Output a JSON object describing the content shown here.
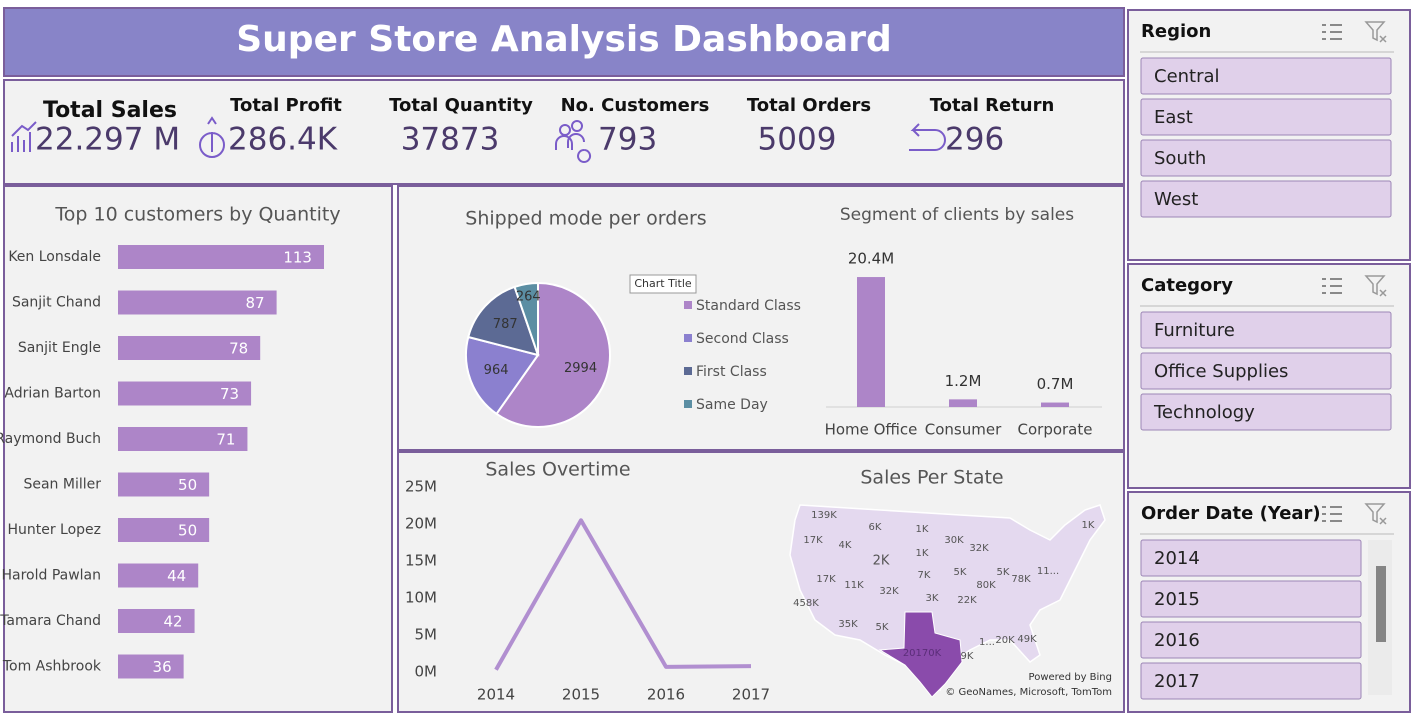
{
  "header": {
    "title": "Super Store Analysis Dashboard"
  },
  "kpis": [
    {
      "label": "Total Sales",
      "value": "22.297 M"
    },
    {
      "label": "Total Profit",
      "value": "286.4K"
    },
    {
      "label": "Total Quantity",
      "value": "37873"
    },
    {
      "label": "No. Customers",
      "value": "793"
    },
    {
      "label": "Total Orders",
      "value": "5009"
    },
    {
      "label": "Total Return",
      "value": "296"
    }
  ],
  "chart_data": [
    {
      "type": "hbar",
      "title": "Top 10 customers by Quantity",
      "categories": [
        "Ken Lonsdale",
        "Sanjit Chand",
        "Sanjit Engle",
        "Adrian Barton",
        "Raymond Buch",
        "Sean Miller",
        "Hunter Lopez",
        "Harold Pawlan",
        "Tamara Chand",
        "Tom Ashbrook"
      ],
      "values": [
        113,
        87,
        78,
        73,
        71,
        50,
        50,
        44,
        42,
        36
      ],
      "color": "#ad85c8"
    },
    {
      "type": "pie",
      "title": "Shipped mode per orders",
      "annotation": "Chart Title",
      "categories": [
        "Standard Class",
        "Second Class",
        "First Class",
        "Same Day"
      ],
      "values": [
        2994,
        964,
        787,
        264
      ],
      "colors": [
        "#ad85c8",
        "#8b80cf",
        "#5c6a94",
        "#5b8ea3"
      ]
    },
    {
      "type": "bar",
      "title": "Segment of clients by sales",
      "categories": [
        "Home Office",
        "Consumer",
        "Corporate"
      ],
      "values": [
        20.4,
        1.2,
        0.7
      ],
      "value_labels": [
        "20.4M",
        "1.2M",
        "0.7M"
      ],
      "color": "#ad85c8"
    },
    {
      "type": "line",
      "title": "Sales Overtime",
      "categories": [
        "2014",
        "2015",
        "2016",
        "2017"
      ],
      "values": [
        0.3,
        20.5,
        0.7,
        0.8
      ],
      "ylim": [
        0,
        25
      ],
      "yticks": [
        {
          "value": 0,
          "label": "0M"
        },
        {
          "value": 5,
          "label": "5M"
        },
        {
          "value": 10,
          "label": "10M"
        },
        {
          "value": 15,
          "label": "15M"
        },
        {
          "value": 20,
          "label": "20M"
        },
        {
          "value": 25,
          "label": "25M"
        }
      ],
      "color": "#b18fd0"
    },
    {
      "type": "map",
      "title": "Sales Per State",
      "labels": [
        "139K",
        "6K",
        "1K",
        "17K",
        "4K",
        "2K",
        "1K",
        "30K",
        "32K",
        "17K",
        "11K",
        "32K",
        "7K",
        "5K",
        "80K",
        "5K",
        "78K",
        "11...",
        "458K",
        "3K",
        "22K",
        "35K",
        "5K",
        "1...",
        "20K",
        "49K",
        "20170K",
        "9K",
        "1K"
      ],
      "credits": [
        "Powered by Bing",
        "© GeoNames, Microsoft, TomTom"
      ]
    }
  ],
  "slicers": [
    {
      "title": "Region",
      "items": [
        "Central",
        "East",
        "South",
        "West"
      ]
    },
    {
      "title": "Category",
      "items": [
        "Furniture",
        "Office Supplies",
        "Technology"
      ]
    },
    {
      "title": "Order Date (Year)",
      "items": [
        "2014",
        "2015",
        "2016",
        "2017"
      ]
    }
  ]
}
